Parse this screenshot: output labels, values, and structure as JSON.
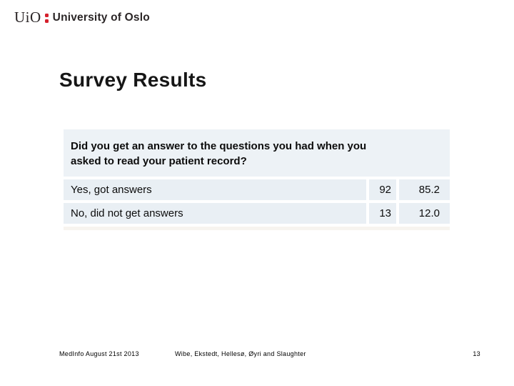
{
  "logo": {
    "acronym": "UiO",
    "institution": "University of Oslo",
    "accent_red": "#d5202c",
    "text_color": "#2a2526"
  },
  "slide": {
    "title": "Survey Results"
  },
  "table": {
    "question": "Did you get an answer to the questions you had when you\nasked to read your patient record?",
    "rows": [
      {
        "label": "Yes, got answers",
        "count": "92",
        "percent": "85.2"
      },
      {
        "label": "No, did not get answers",
        "count": "13",
        "percent": "12.0"
      }
    ],
    "header_bg": "#edf2f6",
    "cell_bg": "#e9eff4"
  },
  "chart_data": {
    "type": "table",
    "title": "Did you get an answer to the questions you had when you asked to read your patient record?",
    "categories": [
      "Yes, got answers",
      "No, did not get answers"
    ],
    "series": [
      {
        "name": "count",
        "values": [
          92,
          13
        ]
      },
      {
        "name": "percent",
        "values": [
          85.2,
          12.0
        ]
      }
    ]
  },
  "footer": {
    "left": "MedInfo August 21st 2013",
    "center": "Wibe, Ekstedt, Hellesø, Øyri and Slaughter",
    "page_number": "13"
  }
}
